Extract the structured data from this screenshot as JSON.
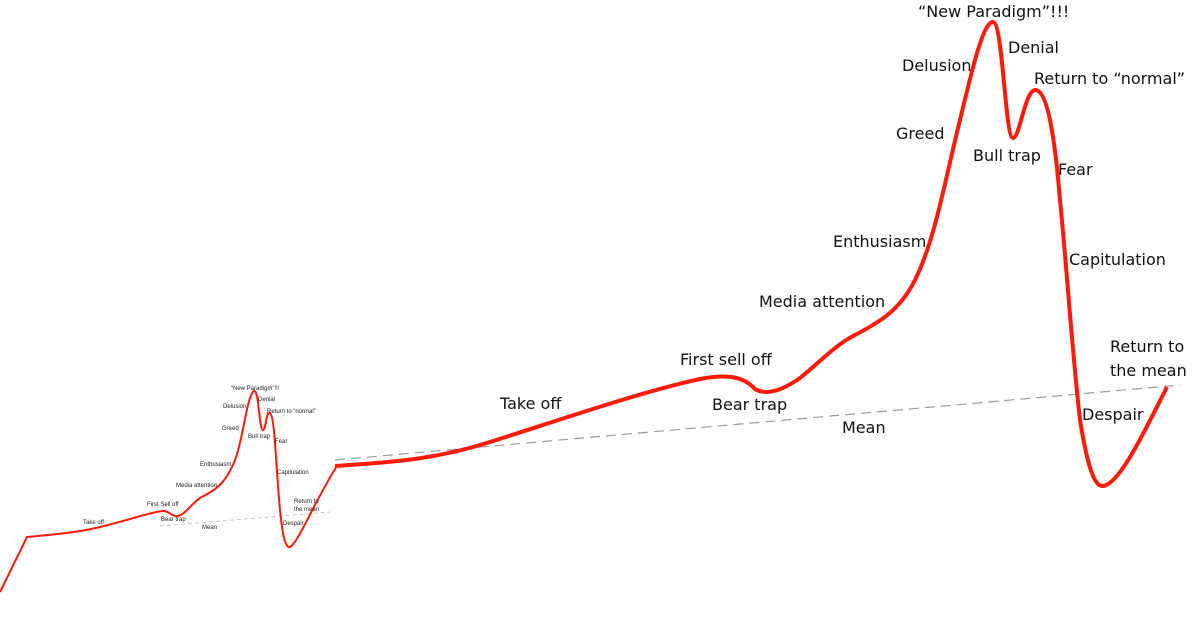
{
  "colors": {
    "curve": "#ff1a0a",
    "mean_line": "#9a9a9a",
    "text": "#111111"
  },
  "main": {
    "labels": {
      "new_paradigm": "“New Paradigm”!!!",
      "denial": "Denial",
      "delusion": "Delusion",
      "return_normal": "Return to “normal”",
      "greed": "Greed",
      "bull_trap": "Bull trap",
      "fear": "Fear",
      "enthusiasm": "Enthusiasm",
      "capitulation": "Capitulation",
      "media_attention": "Media attention",
      "return_mean_1": "Return to",
      "return_mean_2": "the mean",
      "first_sell_off": "First sell off",
      "take_off": "Take off",
      "bear_trap": "Bear trap",
      "despair": "Despair",
      "mean": "Mean"
    }
  },
  "inset": {
    "labels": {
      "new_paradigm": "“New Paradigm”!!!",
      "denial": "Denial",
      "delusion": "Delusion",
      "return_normal": "Return to “normal”",
      "greed": "Greed",
      "bull_trap": "Bull trap",
      "fear": "Fear",
      "enthusiasm": "Enthusiasm",
      "capitulation": "Capitulation",
      "media_attention": "Media attention",
      "return_mean_1": "Return to",
      "return_mean_2": "the mean",
      "first_sell_off": "First Sell off",
      "take_off": "Take off",
      "bear_trap": "Bear trap",
      "despair": "Despair",
      "mean": "Mean"
    }
  }
}
